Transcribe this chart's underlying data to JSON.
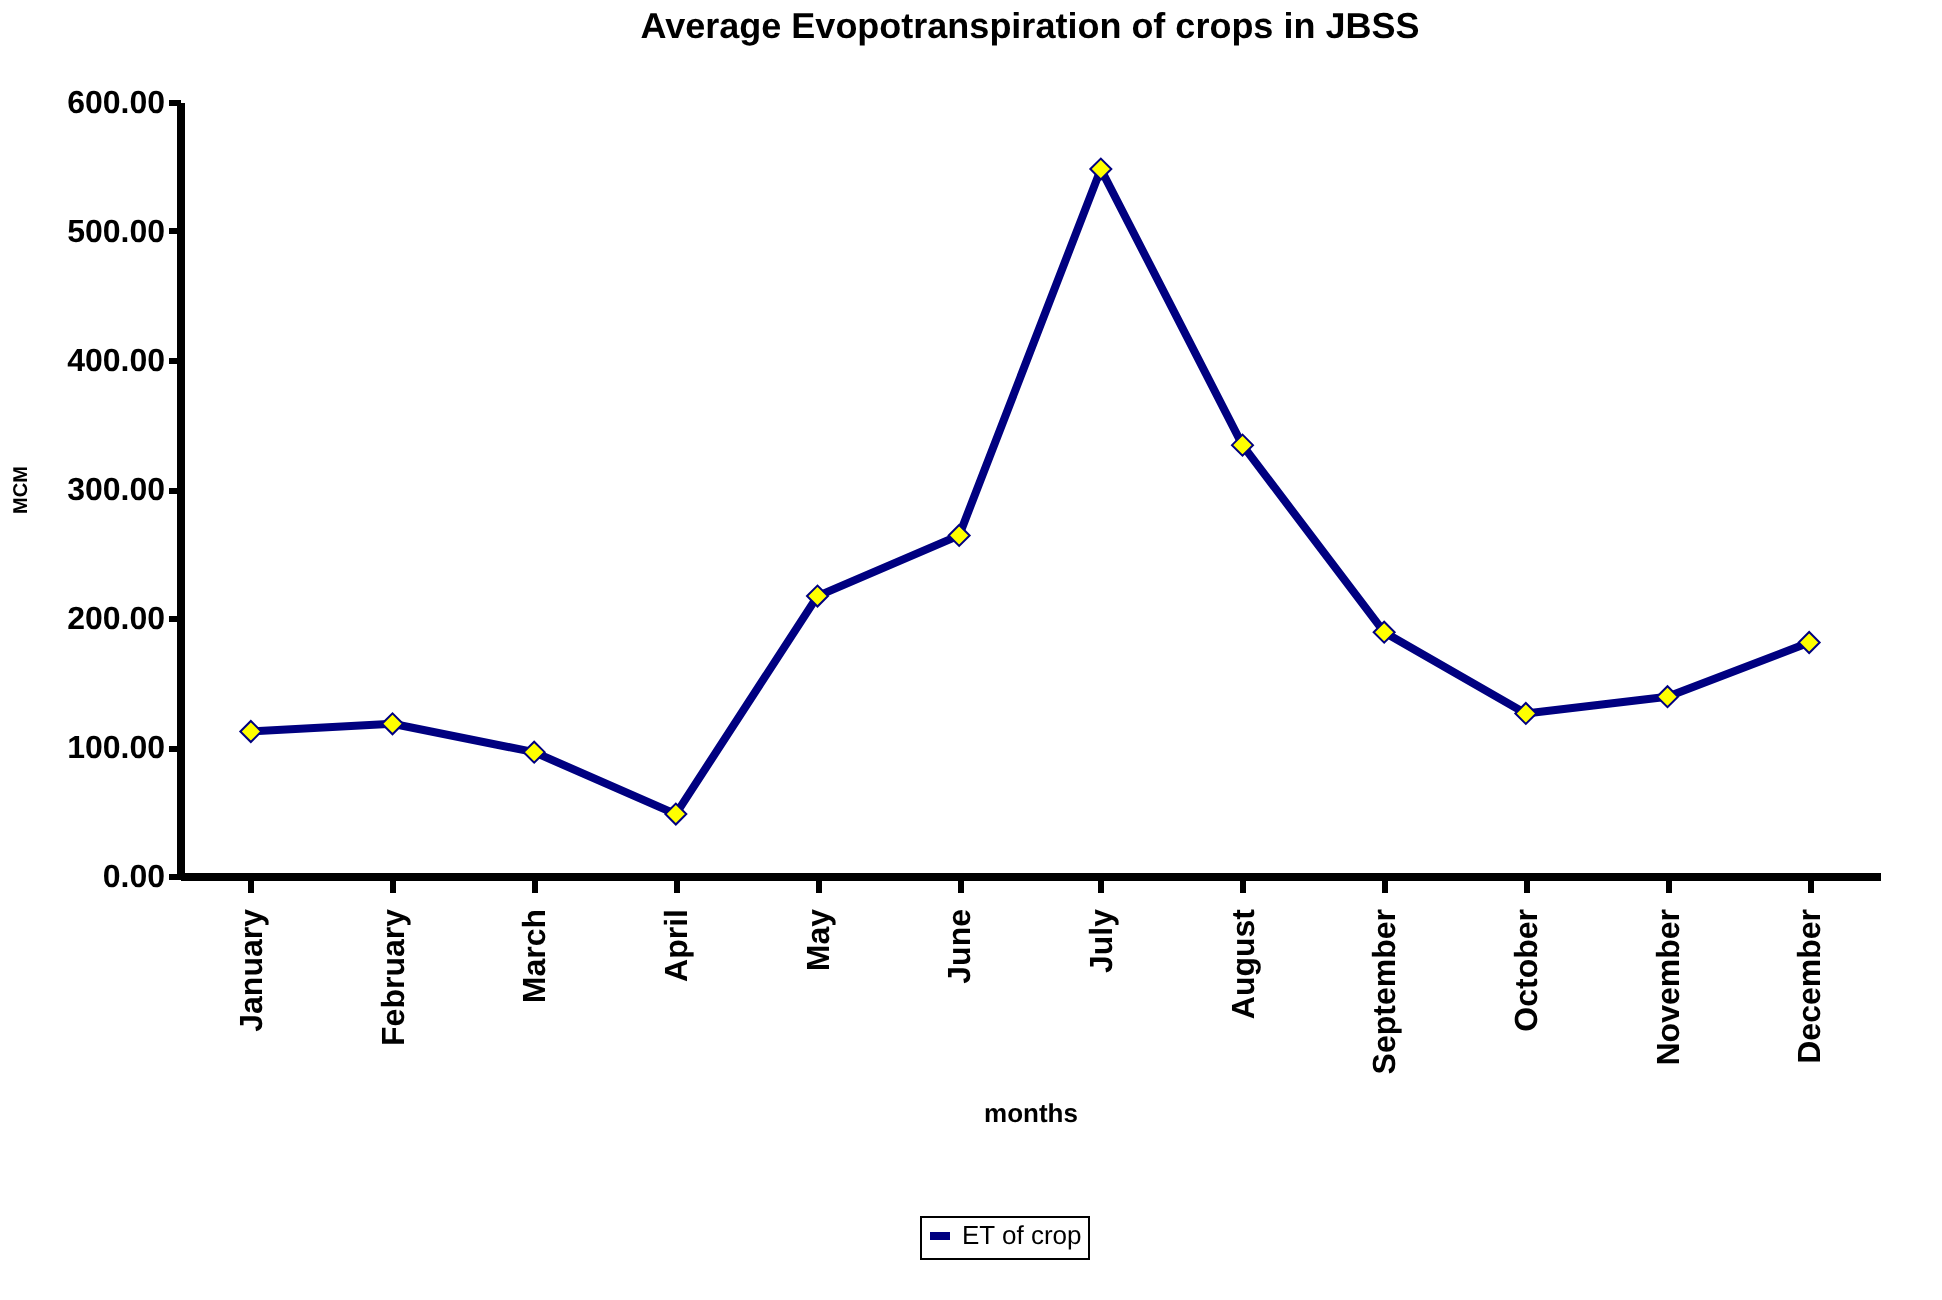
{
  "chart_data": {
    "type": "line",
    "title": "Average Evopotranspiration  of crops in JBSS",
    "xlabel": "months",
    "ylabel": "MCM",
    "categories": [
      "January",
      "February",
      "March",
      "April",
      "May",
      "June",
      "July",
      "August",
      "September",
      "October",
      "November",
      "December"
    ],
    "series": [
      {
        "name": "ET of crop",
        "color": "#000080",
        "values": [
          112,
          118,
          96,
          48,
          217,
          264,
          548,
          334,
          189,
          126,
          139,
          181
        ]
      }
    ],
    "ylim": [
      0,
      600
    ],
    "yticks": [
      {
        "value": 0,
        "label": "0.00"
      },
      {
        "value": 100,
        "label": "100.00"
      },
      {
        "value": 200,
        "label": "200.00"
      },
      {
        "value": 300,
        "label": "300.00"
      },
      {
        "value": 400,
        "label": "400.00"
      },
      {
        "value": 500,
        "label": "500.00"
      },
      {
        "value": 600,
        "label": "600.00"
      }
    ],
    "grid": false,
    "legend": "bottom",
    "marker": "diamond",
    "line_style": "solid"
  }
}
